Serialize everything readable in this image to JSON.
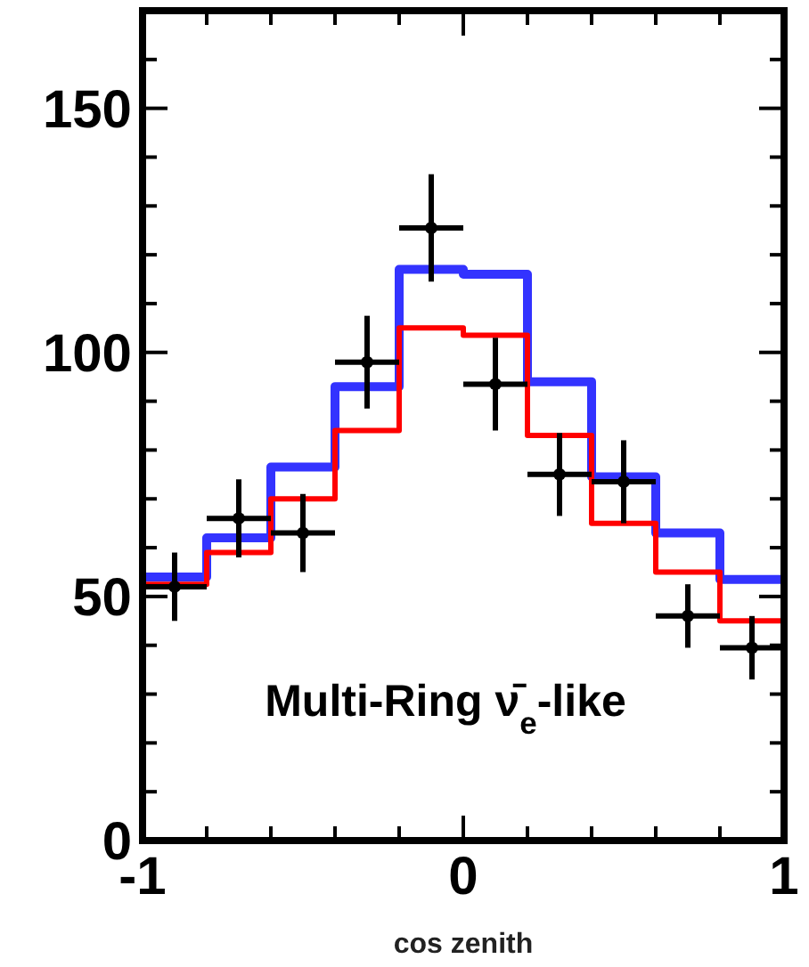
{
  "chart_data": {
    "type": "histogram",
    "xlabel": "cos zenith",
    "bins": [
      -1,
      -0.8,
      -0.6,
      -0.4,
      -0.2,
      0,
      0.2,
      0.4,
      0.6,
      0.8,
      1
    ],
    "series": [
      {
        "color": "#3333ff",
        "values": [
          54,
          62,
          76.5,
          93,
          117,
          116,
          94,
          74.5,
          63,
          53.5
        ]
      },
      {
        "color": "#ff0000",
        "values": [
          52.5,
          59,
          70,
          84,
          105,
          103.5,
          83,
          65,
          55,
          45
        ]
      },
      {
        "type": "scatter",
        "color": "#000000",
        "x": [
          -0.9,
          -0.7,
          -0.5,
          -0.3,
          -0.1,
          0.1,
          0.3,
          0.5,
          0.7,
          0.9
        ],
        "values": [
          52,
          66,
          63,
          98,
          125.5,
          93.5,
          75,
          73.5,
          46,
          39.5
        ],
        "errors": [
          7,
          8,
          8,
          9.5,
          11,
          9.5,
          8.5,
          8.5,
          6.5,
          6.5
        ],
        "xerrors": [
          0.1,
          0.1,
          0.1,
          0.1,
          0.1,
          0.1,
          0.1,
          0.1,
          0.1,
          0.1
        ]
      }
    ],
    "xlim": [
      -1,
      1
    ],
    "xticks": [
      -1,
      {
        "value": -0.8,
        "label": null
      },
      {
        "value": -0.6,
        "label": null
      },
      {
        "value": -0.4,
        "label": null
      },
      {
        "value": -0.2,
        "label": null
      },
      0,
      {
        "value": 0.2,
        "label": null
      },
      {
        "value": 0.4,
        "label": null
      },
      {
        "value": 0.6,
        "label": null
      },
      {
        "value": 0.8,
        "label": null
      },
      1
    ],
    "ylim": [
      0,
      170
    ],
    "yticks": [
      0,
      {
        "value": 10,
        "label": null
      },
      {
        "value": 20,
        "label": null
      },
      {
        "value": 30,
        "label": null
      },
      {
        "value": 40,
        "label": null
      },
      50,
      {
        "value": 60,
        "label": null
      },
      {
        "value": 70,
        "label": null
      },
      {
        "value": 80,
        "label": null
      },
      {
        "value": 90,
        "label": null
      },
      100,
      {
        "value": 110,
        "label": null
      },
      {
        "value": 120,
        "label": null
      },
      {
        "value": 130,
        "label": null
      },
      {
        "value": 140,
        "label": null
      },
      150,
      {
        "value": 160,
        "label": null
      }
    ],
    "annotations": [
      "Multi-Ring ν̄$_{e}$-like"
    ]
  }
}
